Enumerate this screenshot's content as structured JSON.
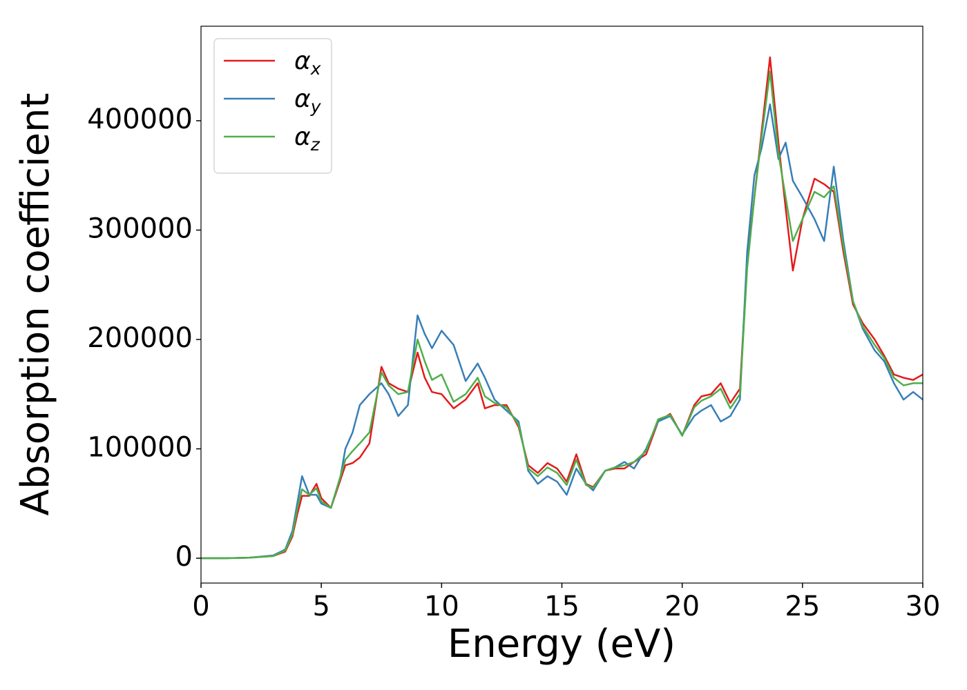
{
  "chart_data": {
    "type": "line",
    "xlabel": "Energy (eV)",
    "ylabel": "Absorption coefficient",
    "x": [
      0,
      1,
      2,
      3,
      3.5,
      3.8,
      4.0,
      4.2,
      4.5,
      4.8,
      5.0,
      5.4,
      5.8,
      6.0,
      6.3,
      6.6,
      7.0,
      7.5,
      7.8,
      8.2,
      8.6,
      9.0,
      9.3,
      9.6,
      10.0,
      10.5,
      11.0,
      11.5,
      11.8,
      12.2,
      12.7,
      13.2,
      13.6,
      14.0,
      14.4,
      14.8,
      15.2,
      15.6,
      16.0,
      16.3,
      16.8,
      17.2,
      17.6,
      18.0,
      18.5,
      19.0,
      19.5,
      20.0,
      20.5,
      20.8,
      21.2,
      21.6,
      22.0,
      22.4,
      22.7,
      23.0,
      23.3,
      23.65,
      24.0,
      24.3,
      24.6,
      25.0,
      25.5,
      25.9,
      26.3,
      26.7,
      27.1,
      27.5,
      28.0,
      28.4,
      28.8,
      29.2,
      29.6,
      30.0
    ],
    "series": [
      {
        "name": "αx",
        "color": "#e41a1c",
        "values": [
          0,
          0,
          500,
          2000,
          6000,
          20000,
          40000,
          57000,
          57000,
          68000,
          55000,
          46000,
          72000,
          85000,
          87000,
          92000,
          105000,
          175000,
          160000,
          155000,
          152000,
          188000,
          165000,
          152000,
          150000,
          137000,
          145000,
          160000,
          137000,
          140000,
          140000,
          120000,
          85000,
          78000,
          87000,
          82000,
          70000,
          95000,
          68000,
          65000,
          80000,
          82000,
          82000,
          88000,
          95000,
          125000,
          132000,
          112000,
          140000,
          148000,
          150000,
          160000,
          142000,
          155000,
          270000,
          330000,
          390000,
          458000,
          380000,
          320000,
          263000,
          310000,
          347000,
          342000,
          335000,
          280000,
          232000,
          215000,
          200000,
          185000,
          168000,
          165000,
          163000,
          168000
        ]
      },
      {
        "name": "αy",
        "color": "#377eb8",
        "values": [
          0,
          0,
          500,
          2500,
          8000,
          25000,
          50000,
          75000,
          58000,
          58000,
          50000,
          46000,
          75000,
          100000,
          115000,
          140000,
          150000,
          160000,
          150000,
          130000,
          140000,
          222000,
          205000,
          192000,
          208000,
          195000,
          162000,
          178000,
          165000,
          145000,
          135000,
          125000,
          80000,
          68000,
          75000,
          70000,
          58000,
          82000,
          68000,
          62000,
          80000,
          83000,
          88000,
          82000,
          100000,
          125000,
          130000,
          113000,
          130000,
          135000,
          140000,
          125000,
          130000,
          145000,
          280000,
          350000,
          375000,
          415000,
          365000,
          380000,
          345000,
          330000,
          310000,
          290000,
          358000,
          290000,
          235000,
          210000,
          190000,
          180000,
          160000,
          145000,
          152000,
          145000
        ]
      },
      {
        "name": "αz",
        "color": "#4daf4a",
        "values": [
          0,
          0,
          500,
          2000,
          7000,
          22000,
          45000,
          63000,
          58000,
          64000,
          52000,
          46000,
          75000,
          90000,
          98000,
          105000,
          115000,
          170000,
          158000,
          150000,
          152000,
          200000,
          180000,
          163000,
          168000,
          143000,
          150000,
          165000,
          148000,
          142000,
          138000,
          122000,
          82000,
          75000,
          83000,
          78000,
          67000,
          90000,
          67000,
          64000,
          80000,
          83000,
          85000,
          88000,
          98000,
          127000,
          131000,
          112000,
          138000,
          144000,
          148000,
          155000,
          137000,
          150000,
          265000,
          330000,
          385000,
          445000,
          370000,
          330000,
          290000,
          310000,
          335000,
          330000,
          340000,
          285000,
          235000,
          212000,
          195000,
          183000,
          165000,
          158000,
          160000,
          160000
        ]
      }
    ],
    "xlim": [
      0,
      30
    ],
    "xticks": [
      0,
      5,
      10,
      15,
      20,
      25,
      30
    ],
    "ylim": [
      -22700,
      486400
    ],
    "yticks": [
      0,
      100000,
      200000,
      300000,
      400000
    ],
    "legend": "upper left",
    "grid": false
  }
}
